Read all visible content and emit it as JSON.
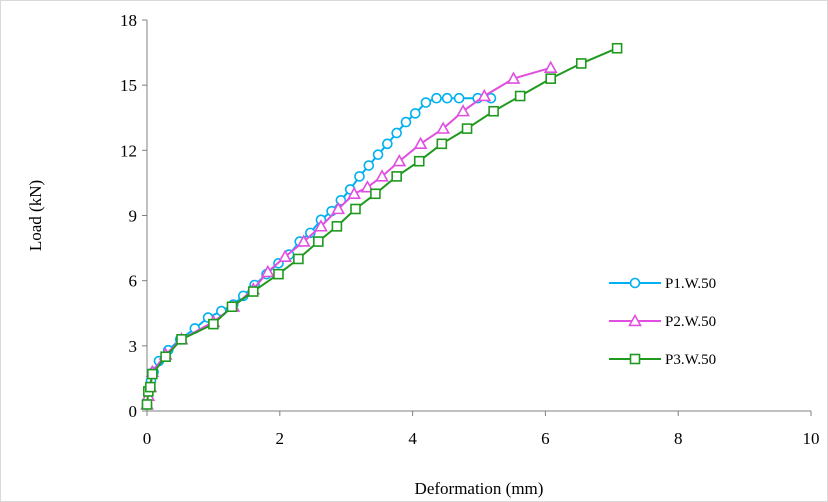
{
  "chart_data": {
    "type": "line",
    "title": "",
    "xlabel": "Deformation (mm)",
    "ylabel": "Load (kN)",
    "xlim": [
      0,
      10
    ],
    "ylim": [
      0,
      18
    ],
    "x_ticks": [
      0,
      2,
      4,
      6,
      8,
      10
    ],
    "y_ticks": [
      0,
      3,
      6,
      9,
      12,
      15,
      18
    ],
    "grid": false,
    "legend_position": "right",
    "series": [
      {
        "name": "P1.W.50",
        "color": "#00b0f0",
        "marker": "circle",
        "x": [
          0.0,
          0.03,
          0.06,
          0.1,
          0.18,
          0.32,
          0.5,
          0.72,
          0.92,
          1.12,
          1.3,
          1.45,
          1.62,
          1.8,
          1.98,
          2.14,
          2.3,
          2.46,
          2.62,
          2.78,
          2.92,
          3.06,
          3.2,
          3.34,
          3.48,
          3.62,
          3.76,
          3.9,
          4.04,
          4.2,
          4.36,
          4.52,
          4.7,
          4.98,
          5.18
        ],
        "y": [
          0.3,
          1.0,
          1.4,
          1.8,
          2.3,
          2.8,
          3.3,
          3.8,
          4.3,
          4.6,
          4.9,
          5.3,
          5.8,
          6.3,
          6.8,
          7.2,
          7.8,
          8.2,
          8.8,
          9.2,
          9.7,
          10.2,
          10.8,
          11.3,
          11.8,
          12.3,
          12.8,
          13.3,
          13.7,
          14.2,
          14.4,
          14.4,
          14.4,
          14.4,
          14.4
        ]
      },
      {
        "name": "P2.W.50",
        "color": "#e04fe0",
        "marker": "triangle",
        "x": [
          0.0,
          0.02,
          0.05,
          0.08,
          0.28,
          0.52,
          1.0,
          1.3,
          1.6,
          1.82,
          2.08,
          2.36,
          2.62,
          2.88,
          3.12,
          3.32,
          3.54,
          3.8,
          4.12,
          4.46,
          4.76,
          5.08,
          5.52,
          6.08
        ],
        "y": [
          0.3,
          0.7,
          1.1,
          1.8,
          2.6,
          3.3,
          4.1,
          4.8,
          5.6,
          6.4,
          7.1,
          7.8,
          8.5,
          9.3,
          10.0,
          10.3,
          10.8,
          11.5,
          12.3,
          13.0,
          13.8,
          14.5,
          15.3,
          15.8
        ]
      },
      {
        "name": "P3.W.50",
        "color": "#1f9a1f",
        "marker": "square",
        "x": [
          0.0,
          0.02,
          0.05,
          0.08,
          0.28,
          0.52,
          1.0,
          1.28,
          1.6,
          1.98,
          2.28,
          2.58,
          2.86,
          3.14,
          3.44,
          3.76,
          4.1,
          4.44,
          4.82,
          5.22,
          5.62,
          6.08,
          6.54,
          7.08
        ],
        "y": [
          0.3,
          0.9,
          1.1,
          1.7,
          2.5,
          3.3,
          4.0,
          4.8,
          5.5,
          6.3,
          7.0,
          7.8,
          8.5,
          9.3,
          10.0,
          10.8,
          11.5,
          12.3,
          13.0,
          13.8,
          14.5,
          15.3,
          16.0,
          16.7
        ]
      }
    ]
  }
}
